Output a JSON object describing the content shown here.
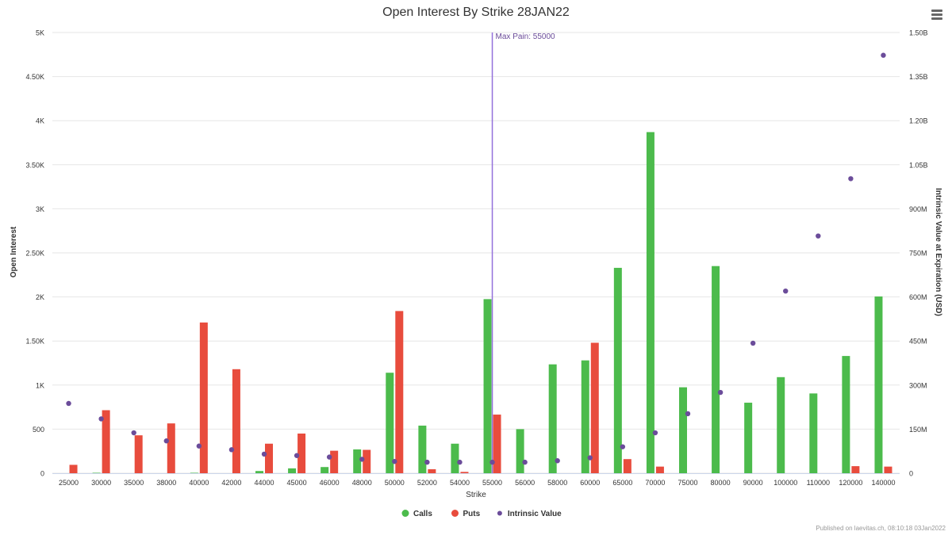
{
  "chart_data": {
    "type": "bar",
    "title": "Open Interest By Strike 28JAN22",
    "xlabel": "Strike",
    "ylabel": "Open Interest",
    "y2label": "Intrinsic Value at Expiration (USD)",
    "ylim": [
      0,
      5000
    ],
    "y2lim": [
      0,
      1500000000
    ],
    "yticks": [
      "0",
      "500",
      "1K",
      "1.50K",
      "2K",
      "2.50K",
      "3K",
      "3.50K",
      "4K",
      "4.50K",
      "5K"
    ],
    "y2ticks": [
      "0",
      "150M",
      "300M",
      "450M",
      "600M",
      "750M",
      "900M",
      "1.05B",
      "1.20B",
      "1.35B",
      "1.50B"
    ],
    "categories": [
      "25000",
      "30000",
      "35000",
      "38000",
      "40000",
      "42000",
      "44000",
      "45000",
      "46000",
      "48000",
      "50000",
      "52000",
      "54000",
      "55000",
      "56000",
      "58000",
      "60000",
      "65000",
      "70000",
      "75000",
      "80000",
      "90000",
      "100000",
      "110000",
      "120000",
      "140000"
    ],
    "series": [
      {
        "name": "Calls",
        "kind": "bar",
        "axis": "left",
        "color": "#4cbb4c",
        "values": [
          0,
          5,
          0,
          0,
          5,
          0,
          25,
          55,
          70,
          270,
          1140,
          540,
          335,
          1975,
          500,
          1235,
          1280,
          2330,
          3870,
          975,
          2350,
          800,
          1090,
          905,
          1330,
          2005
        ]
      },
      {
        "name": "Puts",
        "kind": "bar",
        "axis": "left",
        "color": "#e84c3d",
        "values": [
          95,
          715,
          430,
          565,
          1710,
          1180,
          335,
          450,
          255,
          265,
          1840,
          45,
          15,
          665,
          0,
          0,
          1480,
          160,
          75,
          0,
          0,
          0,
          0,
          0,
          80,
          75
        ]
      },
      {
        "name": "Intrinsic Value",
        "kind": "scatter",
        "axis": "right",
        "color": "#6b4c9a",
        "values": [
          237500000,
          185000000,
          137500000,
          110000000,
          92500000,
          80000000,
          65000000,
          60000000,
          55000000,
          47500000,
          40000000,
          37500000,
          37500000,
          37500000,
          37500000,
          42500000,
          52500000,
          90000000,
          137500000,
          202500000,
          275000000,
          442500000,
          620000000,
          807500000,
          1002500000,
          1422500000
        ]
      }
    ],
    "annotation": {
      "label": "Max Pain: 55000",
      "category": "55000",
      "color": "#9370db"
    },
    "legend": "bottom-center",
    "grid": true
  },
  "menu": {
    "icon": "hamburger-menu-icon"
  },
  "credits": "Published on laevitas.ch, 08:10:18 03Jan2022"
}
